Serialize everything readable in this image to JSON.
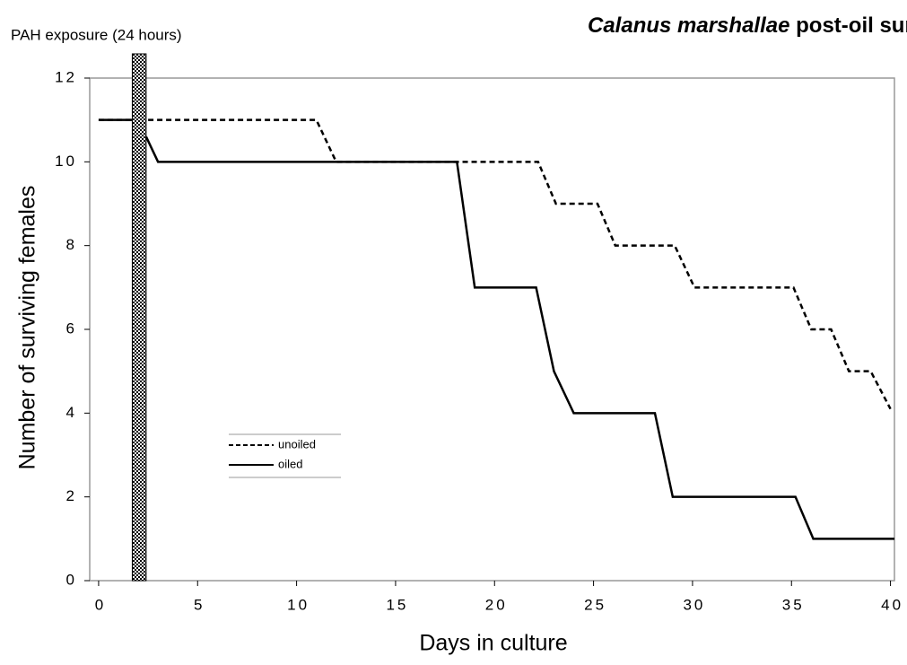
{
  "chart_data": {
    "type": "line",
    "title": {
      "species": "Calanus marshallae",
      "text": "post-oil survival"
    },
    "annotation": "PAH exposure (24 hours)",
    "exposure_band": [
      1.7,
      2.4
    ],
    "x_label": "Days in culture",
    "y_label": "Number of surviving females",
    "xlim": [
      -0.45,
      40.2
    ],
    "ylim": [
      0,
      12
    ],
    "xticks": [
      0,
      5,
      10,
      15,
      20,
      25,
      30,
      35,
      40
    ],
    "yticks": [
      0,
      2,
      4,
      6,
      8,
      10,
      12
    ],
    "legend": "center-left",
    "series": [
      {
        "name": "unoiled",
        "color": "#000000",
        "dash": true,
        "x": [
          0,
          1.7,
          2,
          2.5,
          11,
          12,
          22.2,
          23.1,
          25.2,
          26.1,
          29.1,
          30.1,
          35.1,
          36,
          37,
          37.9,
          39,
          40
        ],
        "values": [
          11,
          11,
          null,
          11,
          11,
          10,
          10,
          9,
          9,
          8,
          8,
          7,
          7,
          6,
          6,
          5,
          5,
          4.1
        ]
      },
      {
        "name": "oiled",
        "color": "#000000",
        "dash": false,
        "x": [
          0,
          1.7,
          2,
          2.4,
          3,
          18.1,
          19,
          22.1,
          23,
          24,
          28.1,
          29,
          35.2,
          36.1,
          40.2
        ],
        "values": [
          11,
          11,
          null,
          10.6,
          10,
          10,
          7,
          7,
          5,
          4,
          4,
          2,
          2,
          1,
          1
        ]
      }
    ]
  }
}
